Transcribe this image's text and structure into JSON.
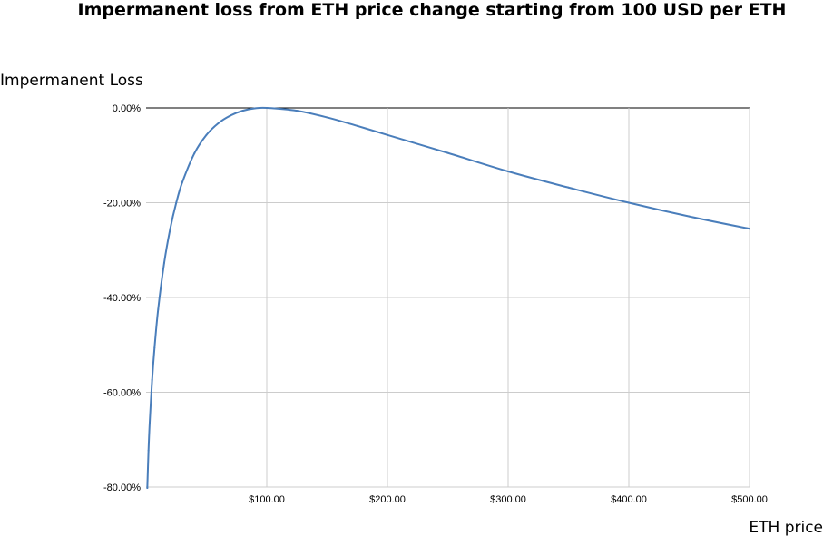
{
  "chart_data": {
    "type": "line",
    "title": "Impermanent loss from ETH price change starting from 100 USD per ETH",
    "xlabel": "ETH price",
    "ylabel": "Impermanent Loss",
    "xlim": [
      0,
      500
    ],
    "ylim": [
      -80,
      0
    ],
    "x_ticks": [
      100,
      200,
      300,
      400,
      500
    ],
    "x_tick_labels": [
      "$100.00",
      "$200.00",
      "$300.00",
      "$400.00",
      "$500.00"
    ],
    "y_ticks": [
      0,
      -20,
      -40,
      -60,
      -80
    ],
    "y_tick_labels": [
      "0.00%",
      "-20.00%",
      "-40.00%",
      "-60.00%",
      "-80.00%"
    ],
    "grid": true,
    "legend": "none",
    "series": [
      {
        "color": "#4a7ebb",
        "x": [
          1,
          2,
          3,
          5,
          7,
          10,
          15,
          20,
          25,
          30,
          40,
          50,
          60,
          70,
          80,
          90,
          100,
          125,
          150,
          175,
          200,
          250,
          300,
          350,
          400,
          450,
          500
        ],
        "values": [
          -80.2,
          -72.3,
          -66.4,
          -57.4,
          -50.6,
          -42.5,
          -32.7,
          -25.5,
          -20.0,
          -15.7,
          -9.6,
          -5.7,
          -3.2,
          -1.6,
          -0.6,
          -0.1,
          0.0,
          -0.6,
          -2.0,
          -3.8,
          -5.7,
          -9.5,
          -13.4,
          -16.8,
          -20.0,
          -22.9,
          -25.5
        ]
      }
    ]
  }
}
